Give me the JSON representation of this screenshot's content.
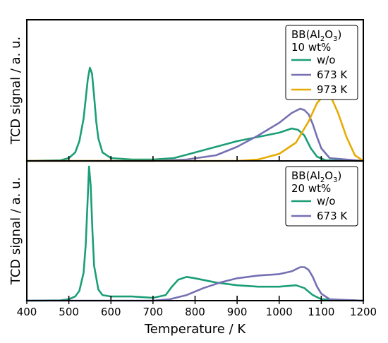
{
  "chart_data": {
    "type": "line",
    "xlabel": "Temperature / K",
    "xlim": [
      400,
      1200
    ],
    "x_ticks": [
      "400",
      "500",
      "600",
      "700",
      "800",
      "900",
      "1000",
      "1100",
      "1200"
    ],
    "shared_x": true,
    "grid": false,
    "panels": [
      {
        "ylabel": "TCD signal / a. u.",
        "ylim": [
          0,
          1
        ],
        "legend": {
          "placement": "top-right",
          "title_base": "BB(Al",
          "title_sub1": "2",
          "title_mid": "O",
          "title_sub2": "3",
          "title_end": ")",
          "title_line2": "10 wt%"
        },
        "series": [
          {
            "name": "w/o",
            "color": "#1b9e77",
            "x": [
              400,
              480,
              500,
              515,
              525,
              535,
              545,
              550,
              555,
              560,
              565,
              570,
              580,
              600,
              650,
              700,
              750,
              800,
              850,
              900,
              950,
              1000,
              1030,
              1045,
              1060,
              1075,
              1090,
              1110,
              1200
            ],
            "y": [
              0,
              0.005,
              0.02,
              0.06,
              0.14,
              0.3,
              0.58,
              0.66,
              0.62,
              0.46,
              0.28,
              0.16,
              0.06,
              0.02,
              0.01,
              0.01,
              0.02,
              0.06,
              0.1,
              0.14,
              0.17,
              0.2,
              0.23,
              0.22,
              0.18,
              0.09,
              0.03,
              0.005,
              0
            ]
          },
          {
            "name": "673 K",
            "color": "#7570b3",
            "x": [
              400,
              700,
              780,
              850,
              900,
              950,
              1000,
              1030,
              1050,
              1060,
              1070,
              1080,
              1090,
              1100,
              1120,
              1200
            ],
            "y": [
              0,
              0,
              0.01,
              0.04,
              0.1,
              0.18,
              0.27,
              0.34,
              0.37,
              0.36,
              0.33,
              0.26,
              0.17,
              0.09,
              0.02,
              0
            ]
          },
          {
            "name": "973 K",
            "color": "#e6ab02",
            "x": [
              400,
              900,
              950,
              1000,
              1040,
              1070,
              1090,
              1105,
              1115,
              1125,
              1140,
              1160,
              1180,
              1200
            ],
            "y": [
              0,
              0,
              0.01,
              0.05,
              0.13,
              0.28,
              0.41,
              0.46,
              0.47,
              0.44,
              0.34,
              0.17,
              0.04,
              0
            ]
          }
        ]
      },
      {
        "ylabel": "TCD signal / a. u.",
        "ylim": [
          0,
          1
        ],
        "legend": {
          "placement": "top-right",
          "title_base": "BB(Al",
          "title_sub1": "2",
          "title_mid": "O",
          "title_sub2": "3",
          "title_end": ")",
          "title_line2": "20 wt%"
        },
        "series": [
          {
            "name": "w/o",
            "color": "#1b9e77",
            "x": [
              400,
              480,
              500,
              515,
              525,
              535,
              540,
              545,
              548,
              552,
              556,
              560,
              570,
              580,
              600,
              650,
              700,
              730,
              745,
              760,
              780,
              800,
              850,
              900,
              950,
              1000,
              1040,
              1060,
              1080,
              1100,
              1200
            ],
            "y": [
              0,
              0.002,
              0.01,
              0.03,
              0.07,
              0.2,
              0.4,
              0.75,
              0.96,
              0.82,
              0.5,
              0.25,
              0.08,
              0.04,
              0.03,
              0.03,
              0.02,
              0.04,
              0.1,
              0.15,
              0.17,
              0.16,
              0.13,
              0.11,
              0.1,
              0.1,
              0.11,
              0.09,
              0.04,
              0.01,
              0
            ]
          },
          {
            "name": "673 K",
            "color": "#7570b3",
            "x": [
              400,
              700,
              740,
              780,
              820,
              860,
              900,
              950,
              1000,
              1030,
              1050,
              1060,
              1070,
              1080,
              1090,
              1100,
              1120,
              1200
            ],
            "y": [
              0,
              0,
              0.01,
              0.04,
              0.09,
              0.13,
              0.16,
              0.18,
              0.19,
              0.21,
              0.24,
              0.24,
              0.22,
              0.17,
              0.1,
              0.05,
              0.01,
              0
            ]
          }
        ]
      }
    ]
  }
}
